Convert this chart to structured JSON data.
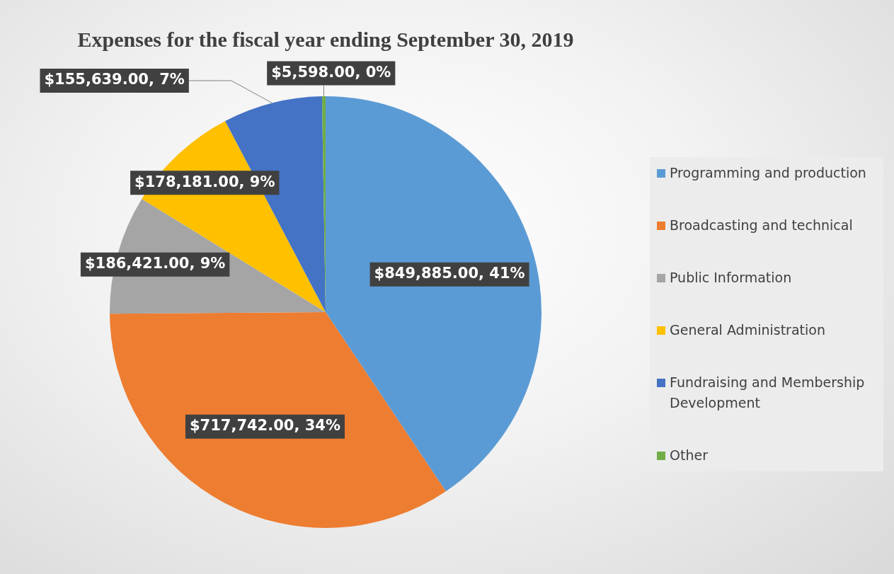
{
  "chart_data": {
    "type": "pie",
    "title": "Expenses for the fiscal year ending September 30, 2019",
    "categories": [
      "Programming and production",
      "Broadcasting and technical",
      "Public Information",
      "General Administration",
      "Fundraising and Membership Development",
      "Other"
    ],
    "values": [
      849885,
      717742,
      186421,
      178181,
      155639,
      5598
    ],
    "colors": [
      "#5b9bd5",
      "#ed7d31",
      "#a5a5a5",
      "#ffc000",
      "#4472c4",
      "#70ad47"
    ],
    "value_labels": [
      "$849,885.00, 41%",
      "$717,742.00, 34%",
      "$186,421.00, 9%",
      "$178,181.00, 9%",
      "$155,639.00, 7%",
      "$5,598.00, 0%"
    ],
    "legend": "right"
  }
}
